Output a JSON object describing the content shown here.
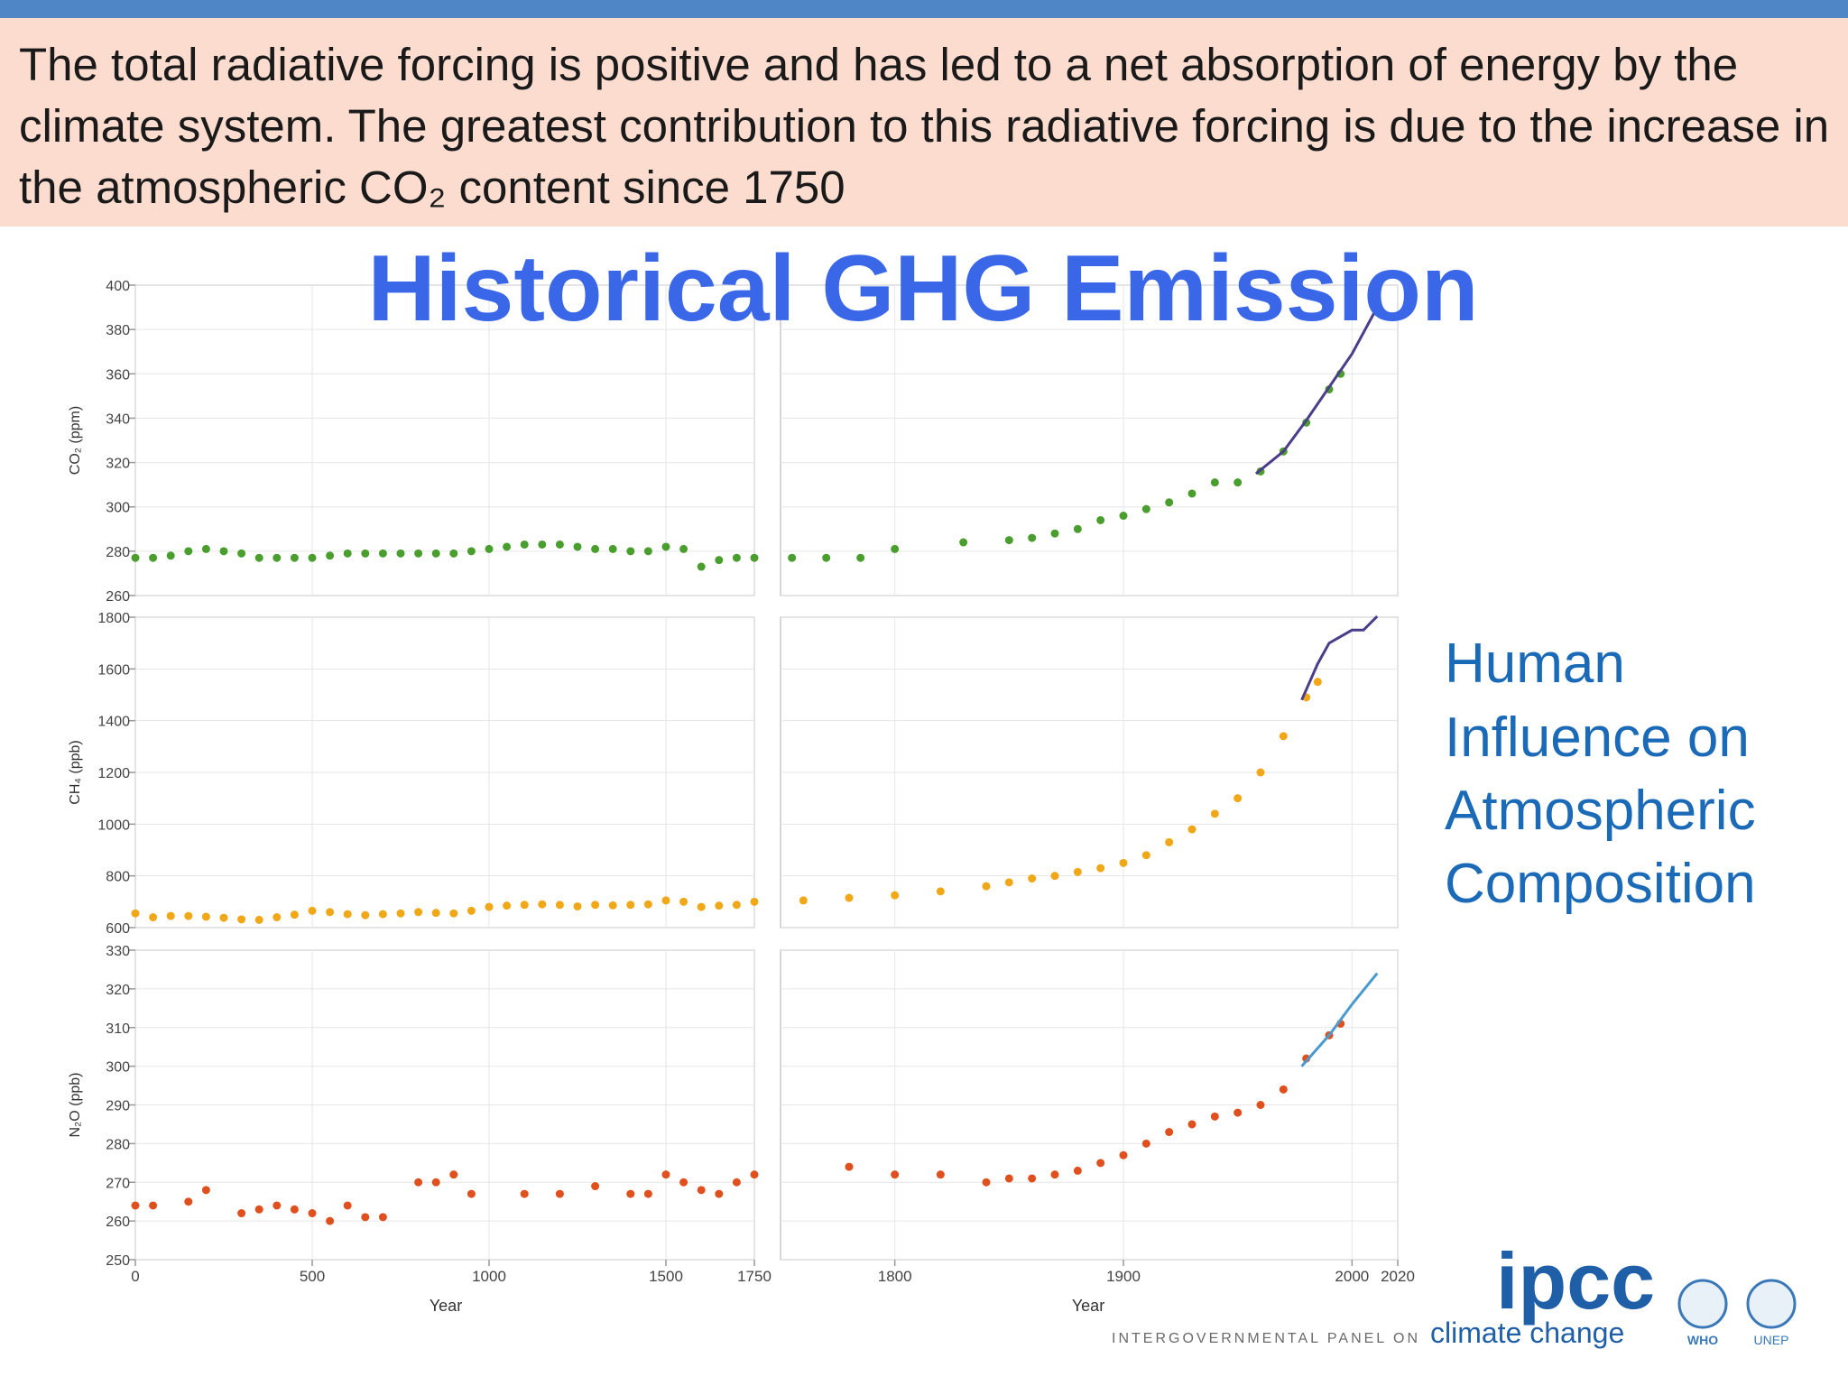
{
  "header": {
    "text": "The total radiative forcing is positive and has led to a net absorption of energy by the climate system. The greatest contribution to this radiative forcing is due to the increase in the atmospheric CO₂ content since 1750"
  },
  "chart_data": {
    "type": "scatter",
    "title": "Historical GHG Emission",
    "grid": true,
    "x_segments": [
      {
        "xlim": [
          0,
          1750
        ],
        "xticks": [
          0,
          500,
          1000,
          1500,
          1750
        ],
        "xlabel": "Year"
      },
      {
        "xlim": [
          1750,
          2020
        ],
        "xticks": [
          1800,
          1900,
          2000,
          2020
        ],
        "xlabel": "Year"
      }
    ],
    "panels": [
      {
        "ylabel": "CO₂ (ppm)",
        "ylim": [
          260,
          400
        ],
        "yticks": [
          260,
          280,
          300,
          320,
          340,
          360,
          380,
          400
        ],
        "series": [
          {
            "color": "#4a9e2e",
            "x": [
              0,
              50,
              100,
              150,
              200,
              250,
              300,
              350,
              400,
              450,
              500,
              550,
              600,
              650,
              700,
              750,
              800,
              850,
              900,
              950,
              1000,
              1050,
              1100,
              1150,
              1200,
              1250,
              1300,
              1350,
              1400,
              1450,
              1500,
              1550,
              1600,
              1650,
              1700,
              1750,
              1755,
              1770,
              1785,
              1800,
              1830,
              1850,
              1860,
              1870,
              1880,
              1890,
              1900,
              1910,
              1920,
              1930,
              1940,
              1950,
              1960,
              1970,
              1980,
              1990,
              1995
            ],
            "values": [
              277,
              277,
              278,
              280,
              281,
              280,
              279,
              277,
              277,
              277,
              277,
              278,
              279,
              279,
              279,
              279,
              279,
              279,
              279,
              280,
              281,
              282,
              283,
              283,
              283,
              282,
              281,
              281,
              280,
              280,
              282,
              281,
              273,
              276,
              277,
              277,
              277,
              277,
              277,
              281,
              284,
              285,
              286,
              288,
              290,
              294,
              296,
              299,
              302,
              306,
              311,
              311,
              316,
              325,
              338,
              353,
              360
            ]
          },
          {
            "type": "line",
            "color": "#4b3d8a",
            "x": [
              1958,
              1970,
              1980,
              1990,
              2000,
              2011
            ],
            "values": [
              315,
              325,
              339,
              354,
              369,
              390
            ]
          }
        ]
      },
      {
        "ylabel": "CH₄ (ppb)",
        "ylim": [
          600,
          1800
        ],
        "yticks": [
          600,
          800,
          1000,
          1200,
          1400,
          1600,
          1800
        ],
        "series": [
          {
            "color": "#f0a818",
            "x": [
              0,
              50,
              100,
              150,
              200,
              250,
              300,
              350,
              400,
              450,
              500,
              550,
              600,
              650,
              700,
              750,
              800,
              850,
              900,
              950,
              1000,
              1050,
              1100,
              1150,
              1200,
              1250,
              1300,
              1350,
              1400,
              1450,
              1500,
              1550,
              1600,
              1650,
              1700,
              1750,
              1760,
              1780,
              1800,
              1820,
              1840,
              1850,
              1860,
              1870,
              1880,
              1890,
              1900,
              1910,
              1920,
              1930,
              1940,
              1950,
              1960,
              1970,
              1980,
              1985
            ],
            "values": [
              655,
              640,
              645,
              645,
              642,
              638,
              632,
              630,
              640,
              650,
              665,
              660,
              652,
              648,
              652,
              655,
              660,
              657,
              655,
              665,
              680,
              685,
              688,
              690,
              688,
              682,
              688,
              686,
              688,
              690,
              705,
              700,
              680,
              685,
              688,
              700,
              705,
              715,
              725,
              740,
              760,
              775,
              790,
              800,
              815,
              830,
              850,
              880,
              930,
              980,
              1040,
              1100,
              1200,
              1340,
              1490,
              1550
            ]
          },
          {
            "type": "line",
            "color": "#4b3d8a",
            "x": [
              1978,
              1985,
              1990,
              2000,
              2005,
              2011
            ],
            "values": [
              1480,
              1620,
              1700,
              1750,
              1750,
              1803
            ]
          }
        ]
      },
      {
        "ylabel": "N₂O (ppb)",
        "ylim": [
          250,
          330
        ],
        "yticks": [
          250,
          260,
          270,
          280,
          290,
          300,
          310,
          320,
          330
        ],
        "series": [
          {
            "color": "#e0501e",
            "x": [
              0,
              50,
              150,
              200,
              300,
              350,
              400,
              450,
              500,
              550,
              600,
              650,
              700,
              800,
              850,
              900,
              950,
              1100,
              1200,
              1300,
              1400,
              1450,
              1500,
              1550,
              1600,
              1650,
              1700,
              1750,
              1780,
              1800,
              1820,
              1840,
              1850,
              1860,
              1870,
              1880,
              1890,
              1900,
              1910,
              1920,
              1930,
              1940,
              1950,
              1960,
              1970,
              1980,
              1990,
              1995
            ],
            "values": [
              264,
              264,
              265,
              268,
              262,
              263,
              264,
              263,
              262,
              260,
              264,
              261,
              261,
              270,
              270,
              272,
              267,
              267,
              267,
              269,
              267,
              267,
              272,
              270,
              268,
              267,
              270,
              272,
              274,
              272,
              272,
              270,
              271,
              271,
              272,
              273,
              275,
              277,
              280,
              283,
              285,
              287,
              288,
              290,
              294,
              302,
              308,
              311
            ]
          },
          {
            "type": "line",
            "color": "#4a9ad0",
            "x": [
              1978,
              1990,
              2000,
              2011
            ],
            "values": [
              300,
              308,
              316,
              324
            ]
          }
        ]
      }
    ]
  },
  "side_text": [
    "Human",
    "Influence on",
    "Atmospheric",
    "Composition"
  ],
  "logo": {
    "name": "ipcc",
    "org": "INTERGOVERNMENTAL PANEL ON",
    "tagline": "climate change",
    "partners": [
      "WHO",
      "UNEP"
    ]
  }
}
